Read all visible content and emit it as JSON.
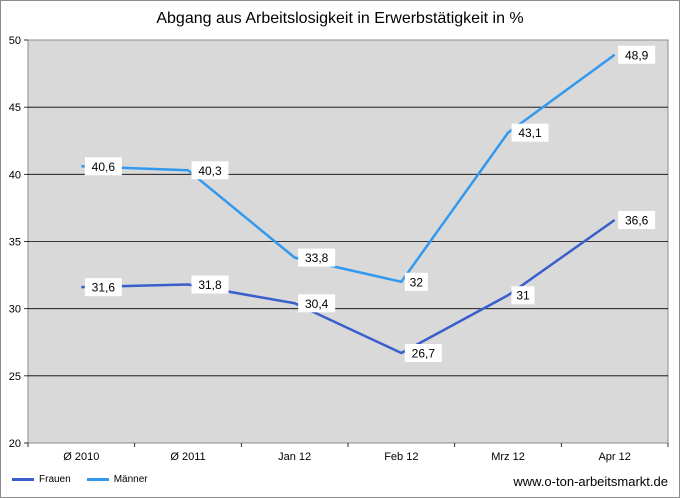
{
  "chart_data": {
    "type": "line",
    "title": "Abgang aus Arbeitslosigkeit in Erwerbstätigkeit in %",
    "categories": [
      "Ø 2010",
      "Ø 2011",
      "Jan 12",
      "Feb 12",
      "Mrz 12",
      "Apr 12"
    ],
    "series": [
      {
        "name": "Frauen",
        "values": [
          31.6,
          31.8,
          30.4,
          26.7,
          31,
          36.6
        ],
        "labels": [
          "31,6",
          "31,8",
          "30,4",
          "26,7",
          "31",
          "36,6"
        ],
        "color": "#3a5fcd"
      },
      {
        "name": "Männer",
        "values": [
          40.6,
          40.3,
          33.8,
          32,
          43.1,
          48.9
        ],
        "labels": [
          "40,6",
          "40,3",
          "33,8",
          "32",
          "43,1",
          "48,9"
        ],
        "color": "#3399ee"
      }
    ],
    "ylim": [
      20,
      50
    ],
    "yticks": [
      20,
      25,
      30,
      35,
      40,
      45,
      50
    ],
    "grid": true,
    "plot_background": "#d9d9d9",
    "legend": "bottom-left",
    "xlabel": "",
    "ylabel": ""
  },
  "source": "www.o-ton-arbeitsmarkt.de"
}
